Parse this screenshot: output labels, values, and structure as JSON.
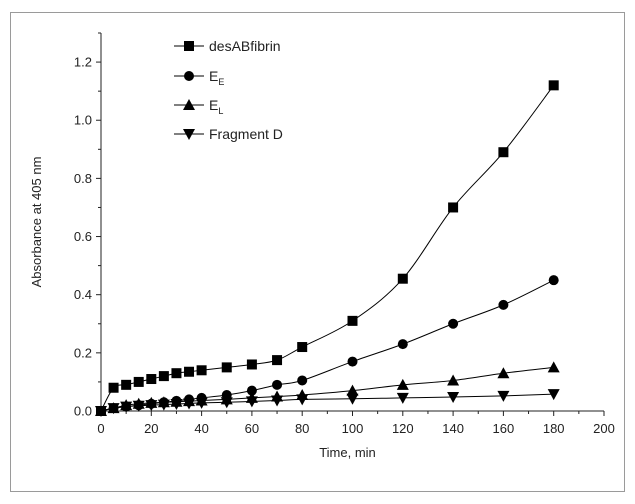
{
  "chart_data": {
    "type": "line",
    "xlabel": "Time, min",
    "ylabel": "Absorbance at 405 nm",
    "xlim": [
      0,
      200
    ],
    "ylim": [
      0,
      1.3
    ],
    "xticks": [
      "0",
      "20",
      "40",
      "60",
      "80",
      "100",
      "120",
      "140",
      "160",
      "180",
      "200"
    ],
    "yticks": [
      "0.0",
      "0.2",
      "0.4",
      "0.6",
      "0.8",
      "1.0",
      "1.2"
    ],
    "legend_position": "top-left",
    "grid": false,
    "series": [
      {
        "name": "desABfibrin",
        "legend_main": "desABfibrin",
        "legend_sub": "",
        "marker": "square",
        "x": [
          0,
          5,
          10,
          15,
          20,
          25,
          30,
          35,
          40,
          50,
          60,
          70,
          80,
          100,
          120,
          140,
          160,
          180
        ],
        "y": [
          0.0,
          0.08,
          0.09,
          0.1,
          0.11,
          0.12,
          0.13,
          0.135,
          0.14,
          0.15,
          0.16,
          0.175,
          0.22,
          0.31,
          0.455,
          0.7,
          0.89,
          1.12
        ]
      },
      {
        "name": "EE",
        "legend_main": "E",
        "legend_sub": "E",
        "marker": "circle",
        "x": [
          0,
          5,
          10,
          15,
          20,
          25,
          30,
          35,
          40,
          50,
          60,
          70,
          80,
          100,
          120,
          140,
          160,
          180
        ],
        "y": [
          0.0,
          0.01,
          0.015,
          0.02,
          0.025,
          0.03,
          0.035,
          0.04,
          0.045,
          0.055,
          0.07,
          0.09,
          0.105,
          0.17,
          0.23,
          0.3,
          0.365,
          0.45
        ]
      },
      {
        "name": "EL",
        "legend_main": "E",
        "legend_sub": "L",
        "marker": "triangle-up",
        "x": [
          0,
          5,
          10,
          15,
          20,
          25,
          30,
          35,
          40,
          50,
          60,
          70,
          80,
          100,
          120,
          140,
          160,
          180
        ],
        "y": [
          0.0,
          0.01,
          0.02,
          0.025,
          0.028,
          0.03,
          0.032,
          0.034,
          0.036,
          0.04,
          0.045,
          0.05,
          0.055,
          0.07,
          0.09,
          0.105,
          0.13,
          0.15
        ]
      },
      {
        "name": "Fragment D",
        "legend_main": "Fragment D",
        "legend_sub": "",
        "marker": "triangle-down",
        "x": [
          0,
          5,
          10,
          15,
          20,
          25,
          30,
          35,
          40,
          50,
          60,
          70,
          80,
          100,
          120,
          140,
          160,
          180
        ],
        "y": [
          0.0,
          0.01,
          0.015,
          0.018,
          0.02,
          0.022,
          0.024,
          0.026,
          0.028,
          0.03,
          0.033,
          0.036,
          0.04,
          0.042,
          0.045,
          0.048,
          0.052,
          0.058
        ]
      }
    ]
  }
}
